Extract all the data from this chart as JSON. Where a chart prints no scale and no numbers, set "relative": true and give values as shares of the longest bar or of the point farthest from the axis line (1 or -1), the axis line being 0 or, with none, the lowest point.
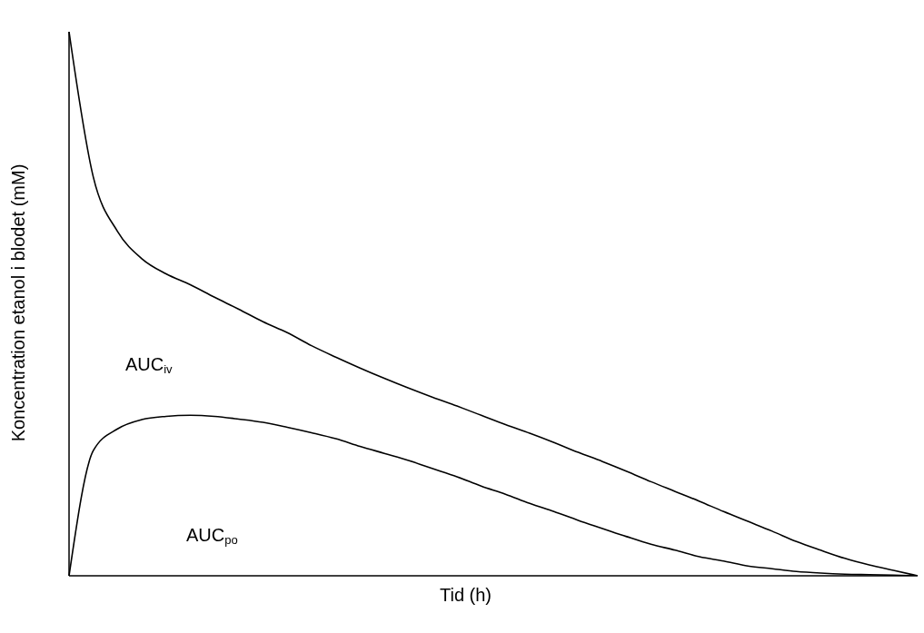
{
  "chart_data": {
    "type": "line",
    "relative": true,
    "xlabel": "Tid (h)",
    "ylabel": "Koncentration etanol i blodet  (mM)",
    "categories": [
      null,
      null,
      null,
      null,
      null,
      null,
      null,
      null,
      null,
      null,
      null,
      null,
      null,
      null,
      null,
      null,
      null,
      null,
      null,
      null,
      null,
      null,
      null,
      null,
      null,
      null,
      null,
      null,
      null,
      null,
      null,
      null,
      null,
      null,
      null,
      null
    ],
    "series": [
      {
        "color": "#000000",
        "values": [
          1.0,
          0.733,
          0.633,
          0.583,
          0.555,
          0.535,
          0.512,
          0.49,
          0.467,
          0.447,
          0.423,
          0.402,
          0.382,
          0.363,
          0.345,
          0.328,
          0.312,
          0.295,
          0.278,
          0.262,
          0.245,
          0.227,
          0.21,
          0.192,
          0.173,
          0.155,
          0.137,
          0.118,
          0.1,
          0.082,
          0.063,
          0.047,
          0.032,
          0.02,
          0.01,
          0
        ]
      },
      {
        "color": "#000000",
        "values": [
          0,
          0.23,
          0.27,
          0.287,
          0.293,
          0.295,
          0.293,
          0.288,
          0.282,
          0.273,
          0.263,
          0.252,
          0.238,
          0.225,
          0.212,
          0.197,
          0.182,
          0.165,
          0.15,
          0.133,
          0.118,
          0.102,
          0.087,
          0.072,
          0.058,
          0.047,
          0.035,
          0.027,
          0.018,
          0.013,
          0.008,
          0.005,
          0.003,
          0.002,
          0.001,
          0
        ]
      }
    ],
    "annotations": [
      "AUC$_{iv}$",
      "AUC$_{po}$"
    ],
    "grid": false
  }
}
